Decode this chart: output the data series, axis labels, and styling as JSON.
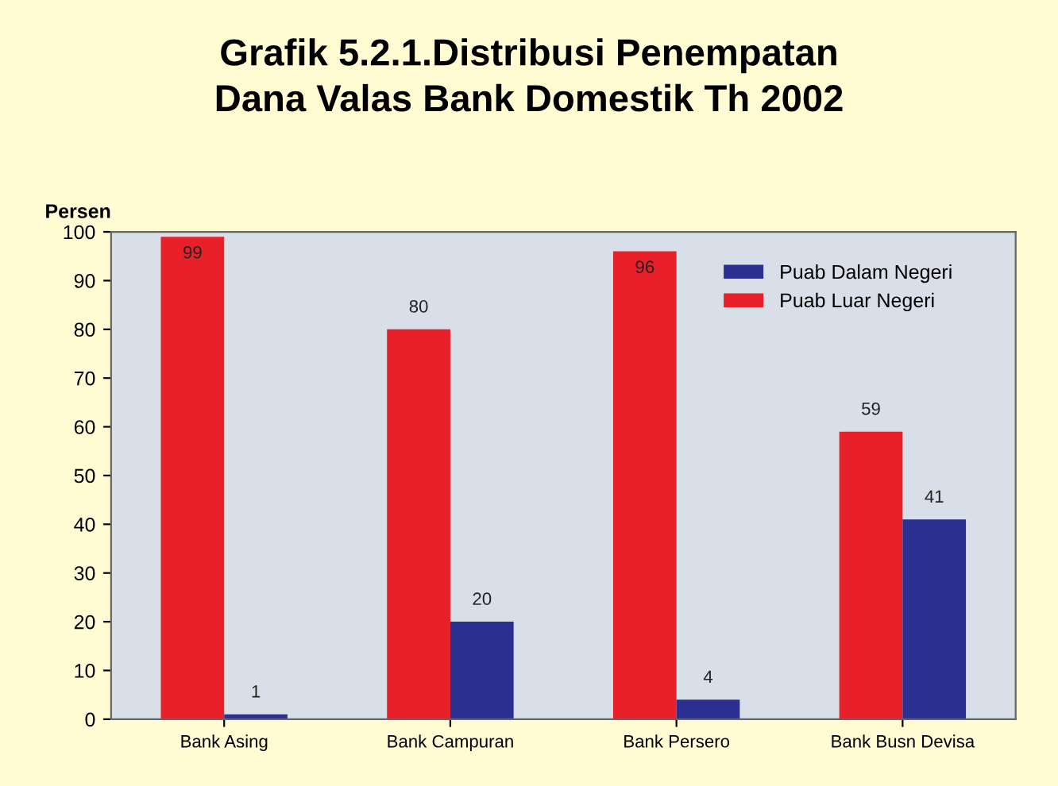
{
  "chart_data": {
    "type": "bar",
    "title": "Grafik 5.2.1.Distribusi Penempatan\nDana Valas Bank Domestik Th 2002",
    "ylabel": "Persen",
    "categories": [
      "Bank Asing",
      "Bank Campuran",
      "Bank Persero",
      "Bank Busn Devisa"
    ],
    "series": [
      {
        "name": "Puab Luar Negeri",
        "color": "#e8202a",
        "values": [
          99,
          80,
          96,
          59
        ]
      },
      {
        "name": "Puab Dalam Negeri",
        "color": "#2b2f8f",
        "values": [
          1,
          20,
          4,
          41
        ]
      }
    ],
    "ylim": [
      0,
      100
    ],
    "yticks": [
      0,
      10,
      20,
      30,
      40,
      50,
      60,
      70,
      80,
      90,
      100
    ],
    "grid": false,
    "legend": "top right",
    "data_labels": true
  }
}
